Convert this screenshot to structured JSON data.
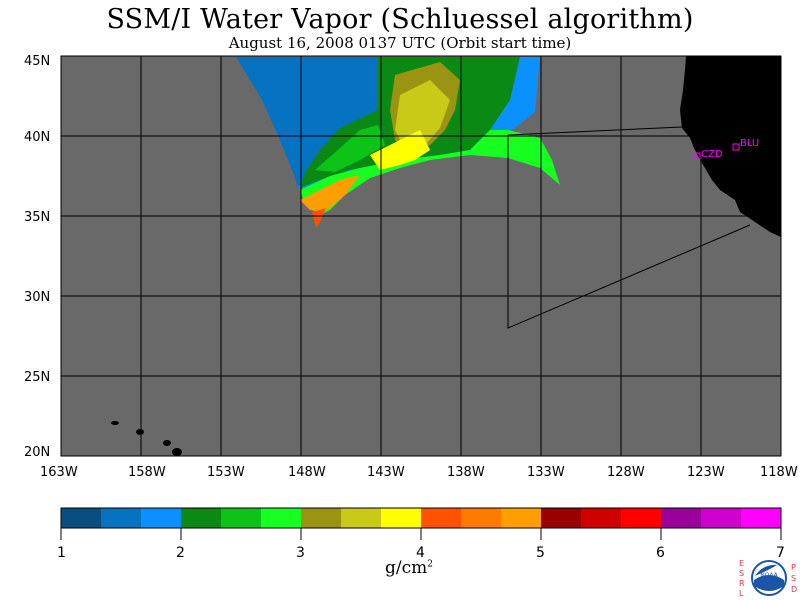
{
  "title": "SSM/I Water Vapor (Schluessel algorithm)",
  "subtitle": "August 16, 2008  0137 UTC  (Orbit start time)",
  "map": {
    "lon_labels": [
      "163W",
      "158W",
      "153W",
      "148W",
      "143W",
      "138W",
      "133W",
      "128W",
      "123W",
      "118W"
    ],
    "lat_labels": [
      "45N",
      "40N",
      "35N",
      "30N",
      "25N",
      "20N"
    ],
    "background_color": "#696969",
    "land_color": "#000000",
    "stations": [
      {
        "label": "CZD",
        "color": "#ff00ff"
      },
      {
        "label": "BLU",
        "color": "#ff00ff"
      }
    ]
  },
  "colorbar": {
    "tick_labels": [
      "1",
      "2",
      "3",
      "4",
      "5",
      "6",
      "7"
    ],
    "units_text": "g/cm",
    "units_sup": "2",
    "colors": [
      "#0a4e80",
      "#0673c2",
      "#0a90ff",
      "#0a8a14",
      "#0ec318",
      "#17ff20",
      "#9a9412",
      "#c9c917",
      "#ffff00",
      "#ff5200",
      "#ff7a00",
      "#ff9e00",
      "#9a0000",
      "#cf0000",
      "#ff0000",
      "#9a009a",
      "#cf00cf",
      "#ff00ff"
    ]
  },
  "logo": {
    "left_letters": [
      "E",
      "S",
      "R",
      "L"
    ],
    "right_letters": [
      "P",
      "S",
      "D"
    ],
    "center_text": "NOAA"
  }
}
